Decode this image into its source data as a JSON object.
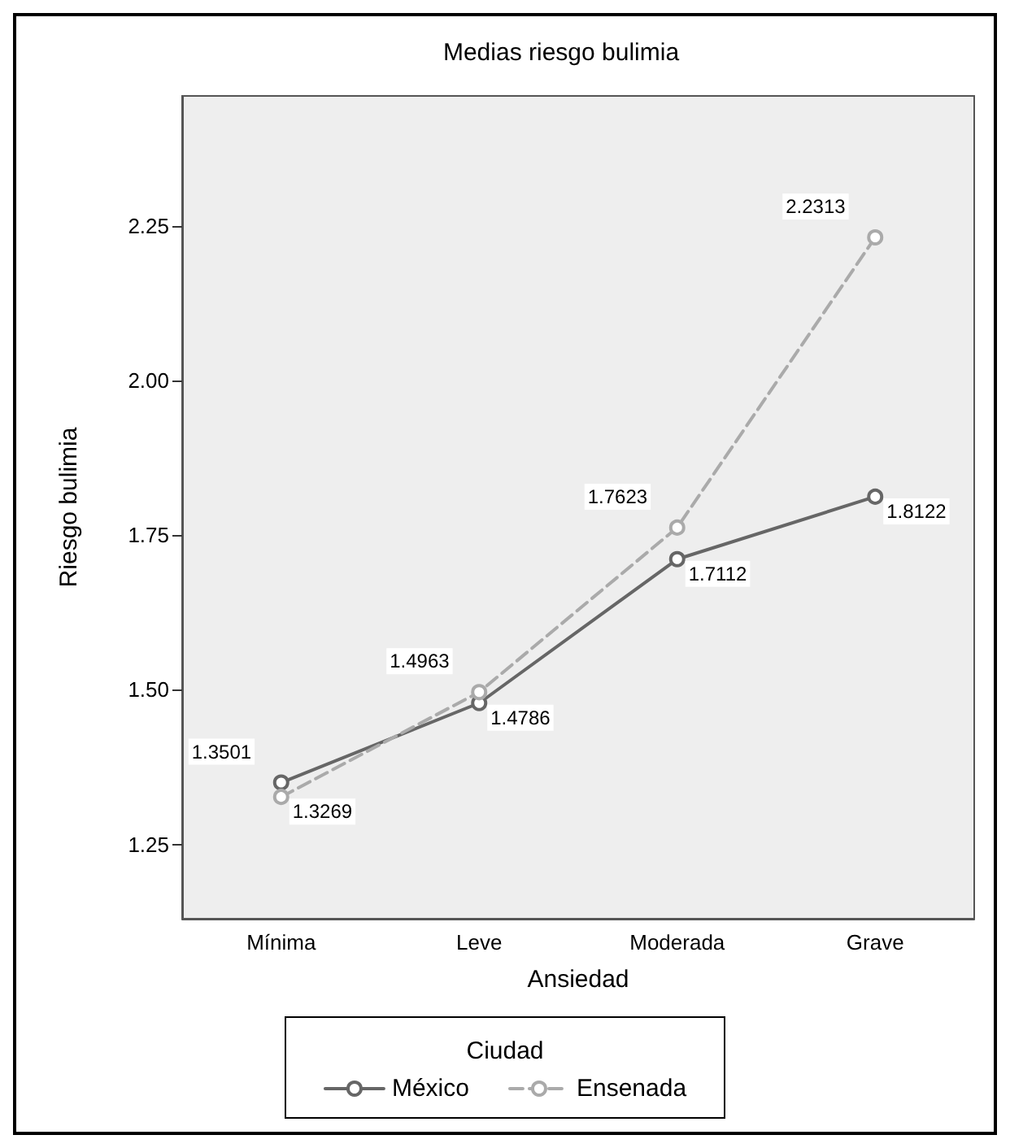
{
  "chart_data": {
    "type": "line",
    "title": "Medias riesgo bulimia",
    "xlabel": "Ansiedad",
    "ylabel": "Riesgo bulimia",
    "legend_title": "Ciudad",
    "categories": [
      "Mínima",
      "Leve",
      "Moderada",
      "Grave"
    ],
    "series": [
      {
        "name": "México",
        "color": "#666666",
        "line_style": "solid",
        "values": [
          1.3501,
          1.4786,
          1.7112,
          1.8122
        ]
      },
      {
        "name": "Ensenada",
        "color": "#aaaaaa",
        "line_style": "dashed",
        "values": [
          1.3269,
          1.4963,
          1.7623,
          2.2313
        ]
      }
    ],
    "ylim": [
      1.13,
      2.46
    ],
    "yticks": [
      {
        "value": 1.25,
        "label": "1.25"
      },
      {
        "value": 1.5,
        "label": "1.50"
      },
      {
        "value": 1.75,
        "label": "1.75"
      },
      {
        "value": 2.0,
        "label": "2.00"
      },
      {
        "value": 2.25,
        "label": "2.25"
      }
    ],
    "grid": false,
    "legend": "bottom",
    "marker": "circle",
    "data_labels": true
  }
}
